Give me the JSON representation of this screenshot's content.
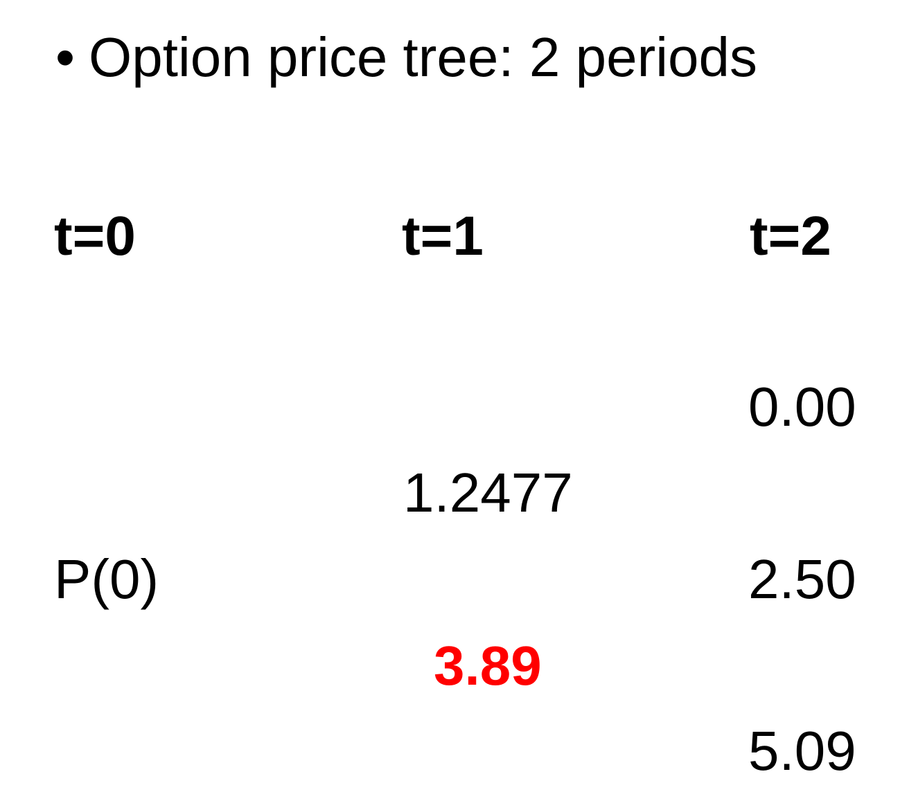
{
  "slide": {
    "bullet": "•",
    "title": "Option price tree: 2 periods"
  },
  "headers": {
    "t0": "t=0",
    "t1": "t=1",
    "t2": "t=2"
  },
  "tree": {
    "t0": {
      "root": "P(0)"
    },
    "t1": {
      "up": "1.2477",
      "down": "3.89"
    },
    "t2": {
      "uu": "0.00",
      "ud": "2.50",
      "dd": "5.09"
    }
  },
  "colors": {
    "highlight": "#ff0000",
    "text": "#000000",
    "background": "#ffffff"
  }
}
